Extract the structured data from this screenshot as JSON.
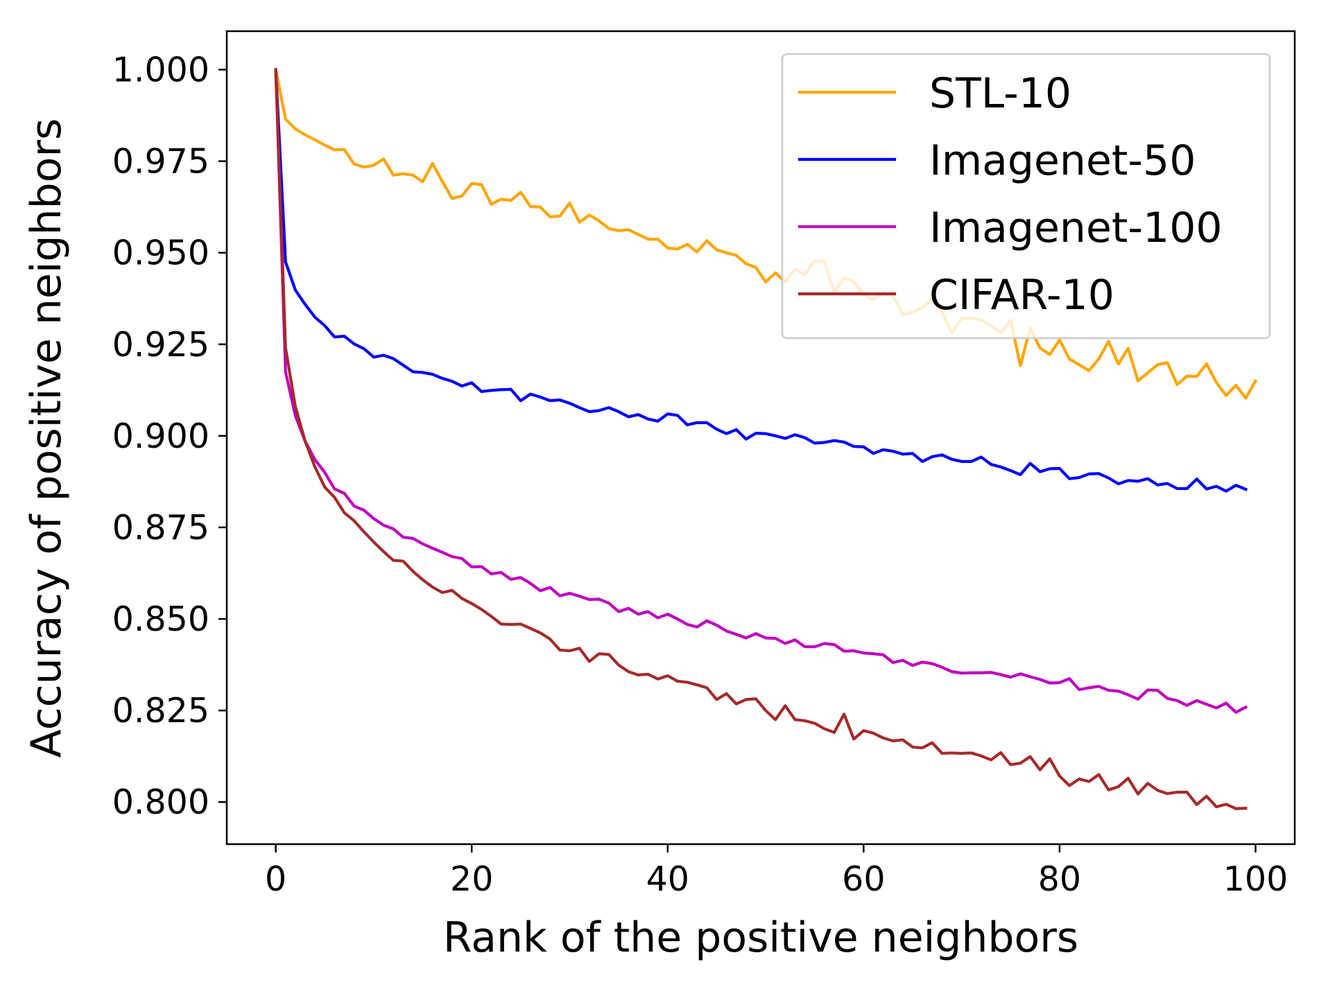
{
  "chart_data": {
    "type": "line",
    "title": "",
    "xlabel": "Rank of the positive neighbors",
    "ylabel": "Accuracy of positive neighbors",
    "xlim": [
      -5,
      104
    ],
    "ylim": [
      0.7885,
      1.0105
    ],
    "xticks": [
      0,
      20,
      40,
      60,
      80,
      100
    ],
    "xtick_labels": [
      "0",
      "20",
      "40",
      "60",
      "80",
      "100"
    ],
    "yticks": [
      0.8,
      0.825,
      0.85,
      0.875,
      0.9,
      0.925,
      0.95,
      0.975,
      1.0
    ],
    "ytick_labels": [
      "0.800",
      "0.825",
      "0.850",
      "0.875",
      "0.900",
      "0.925",
      "0.950",
      "0.975",
      "1.000"
    ],
    "grid": false,
    "legend_position": "top-right",
    "x_start": 0,
    "x_step": 1,
    "series": [
      {
        "name": "STL-10",
        "color": "#FFA500",
        "values": [
          1.0,
          0.9865,
          0.9838,
          0.9822,
          0.9808,
          0.9794,
          0.9781,
          0.9782,
          0.9742,
          0.9734,
          0.9739,
          0.9756,
          0.9712,
          0.9716,
          0.9712,
          0.9694,
          0.9744,
          0.9695,
          0.9648,
          0.9655,
          0.9689,
          0.9686,
          0.9632,
          0.9646,
          0.9643,
          0.9665,
          0.9626,
          0.9625,
          0.9598,
          0.96,
          0.9636,
          0.9583,
          0.9603,
          0.9587,
          0.9566,
          0.956,
          0.9563,
          0.955,
          0.9537,
          0.9537,
          0.9513,
          0.951,
          0.9523,
          0.9502,
          0.9533,
          0.9508,
          0.95,
          0.9493,
          0.947,
          0.946,
          0.942,
          0.9445,
          0.942,
          0.9455,
          0.944,
          0.9478,
          0.9476,
          0.939,
          0.9432,
          0.942,
          0.9386,
          0.9372,
          0.939,
          0.9382,
          0.9331,
          0.9338,
          0.935,
          0.9372,
          0.934,
          0.928,
          0.932,
          0.9322,
          0.9316,
          0.93,
          0.9281,
          0.9316,
          0.9192,
          0.9294,
          0.924,
          0.9222,
          0.9262,
          0.921,
          0.9194,
          0.9178,
          0.921,
          0.9258,
          0.9196,
          0.9239,
          0.915,
          0.9172,
          0.9194,
          0.92,
          0.914,
          0.9163,
          0.9162,
          0.9197,
          0.9146,
          0.911,
          0.9138,
          0.9103,
          0.915
        ]
      },
      {
        "name": "Imagenet-50",
        "color": "#0000FF",
        "values": [
          1.0,
          0.9475,
          0.9398,
          0.9359,
          0.9324,
          0.9301,
          0.927,
          0.9272,
          0.9251,
          0.9238,
          0.9215,
          0.922,
          0.9211,
          0.9193,
          0.9175,
          0.9173,
          0.9168,
          0.9157,
          0.9149,
          0.9136,
          0.9145,
          0.9121,
          0.9124,
          0.9126,
          0.9127,
          0.9096,
          0.9114,
          0.9106,
          0.9096,
          0.9098,
          0.9089,
          0.9077,
          0.9066,
          0.9069,
          0.9077,
          0.9066,
          0.9052,
          0.9058,
          0.9046,
          0.904,
          0.906,
          0.9056,
          0.903,
          0.9036,
          0.9036,
          0.9018,
          0.9006,
          0.9017,
          0.8991,
          0.9007,
          0.9006,
          0.9,
          0.8993,
          0.9003,
          0.8995,
          0.898,
          0.8982,
          0.8987,
          0.8983,
          0.8971,
          0.897,
          0.8952,
          0.8962,
          0.8958,
          0.895,
          0.8952,
          0.893,
          0.8943,
          0.8948,
          0.8936,
          0.893,
          0.893,
          0.8942,
          0.8922,
          0.8915,
          0.8905,
          0.8894,
          0.8925,
          0.8902,
          0.891,
          0.8911,
          0.8883,
          0.8886,
          0.8896,
          0.8897,
          0.8885,
          0.8869,
          0.8878,
          0.8876,
          0.8883,
          0.8866,
          0.887,
          0.8856,
          0.8856,
          0.8882,
          0.8855,
          0.8862,
          0.8849,
          0.8865,
          0.8854
        ]
      },
      {
        "name": "Imagenet-100",
        "color": "#BF00BF",
        "values": [
          1.0,
          0.9175,
          0.9055,
          0.8985,
          0.8935,
          0.89,
          0.8855,
          0.8843,
          0.8808,
          0.8797,
          0.8774,
          0.8756,
          0.8746,
          0.8723,
          0.872,
          0.8705,
          0.8693,
          0.8682,
          0.867,
          0.8665,
          0.8642,
          0.8643,
          0.8623,
          0.8627,
          0.8608,
          0.8613,
          0.8597,
          0.8577,
          0.8586,
          0.8563,
          0.857,
          0.8562,
          0.8553,
          0.8554,
          0.8543,
          0.852,
          0.8529,
          0.8513,
          0.852,
          0.8503,
          0.8513,
          0.85,
          0.8485,
          0.8478,
          0.8495,
          0.8483,
          0.8467,
          0.8458,
          0.8448,
          0.846,
          0.8448,
          0.8447,
          0.8433,
          0.8443,
          0.8424,
          0.8424,
          0.8433,
          0.843,
          0.8412,
          0.8413,
          0.8407,
          0.8405,
          0.8402,
          0.8381,
          0.8387,
          0.8373,
          0.8382,
          0.8378,
          0.8368,
          0.8356,
          0.8352,
          0.8353,
          0.8353,
          0.8354,
          0.8348,
          0.8341,
          0.835,
          0.8342,
          0.8335,
          0.8325,
          0.8326,
          0.8337,
          0.8307,
          0.8312,
          0.8316,
          0.8305,
          0.8303,
          0.8293,
          0.8281,
          0.8306,
          0.8305,
          0.8283,
          0.8277,
          0.8264,
          0.8277,
          0.8267,
          0.8257,
          0.827,
          0.8245,
          0.8259
        ]
      },
      {
        "name": "CIFAR-10",
        "color": "#A52A2A",
        "values": [
          1.0,
          0.924,
          0.908,
          0.8985,
          0.8915,
          0.886,
          0.8832,
          0.879,
          0.8768,
          0.8738,
          0.871,
          0.8684,
          0.866,
          0.8658,
          0.863,
          0.8607,
          0.8587,
          0.8572,
          0.8578,
          0.8556,
          0.8542,
          0.8526,
          0.8507,
          0.8486,
          0.8485,
          0.8486,
          0.8474,
          0.8462,
          0.8445,
          0.8415,
          0.8413,
          0.842,
          0.8384,
          0.8405,
          0.8403,
          0.8374,
          0.8356,
          0.8347,
          0.8349,
          0.8336,
          0.8345,
          0.833,
          0.8327,
          0.832,
          0.8312,
          0.828,
          0.8296,
          0.8268,
          0.828,
          0.8282,
          0.825,
          0.8225,
          0.8263,
          0.8225,
          0.8222,
          0.8215,
          0.82,
          0.819,
          0.824,
          0.8172,
          0.8195,
          0.8188,
          0.8175,
          0.8167,
          0.817,
          0.815,
          0.8148,
          0.8162,
          0.8133,
          0.8134,
          0.8133,
          0.8134,
          0.8126,
          0.8115,
          0.8135,
          0.8102,
          0.8106,
          0.8124,
          0.8088,
          0.8118,
          0.8071,
          0.8045,
          0.8063,
          0.8056,
          0.8075,
          0.8033,
          0.8042,
          0.8065,
          0.8022,
          0.8051,
          0.8032,
          0.8023,
          0.8027,
          0.8027,
          0.7993,
          0.8016,
          0.7987,
          0.7994,
          0.7982,
          0.7983
        ]
      }
    ]
  }
}
